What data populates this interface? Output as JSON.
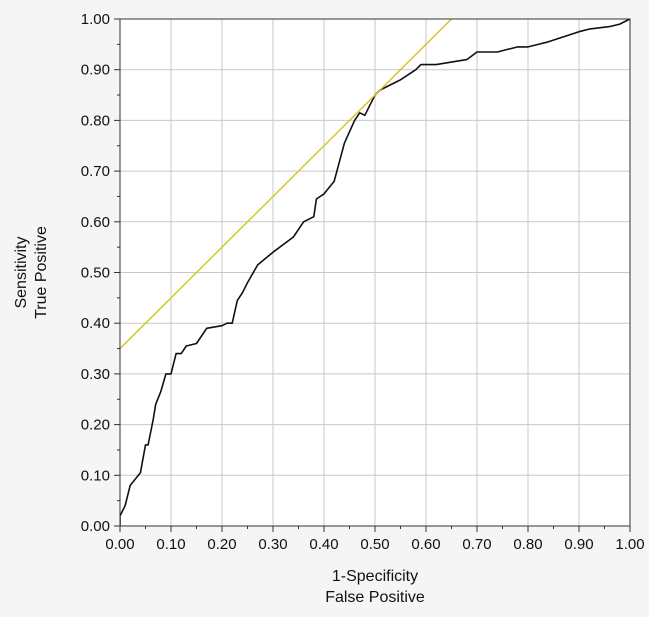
{
  "chart_data": {
    "type": "line",
    "title": "",
    "xlabel": [
      "1-Specificity",
      "False Positive"
    ],
    "ylabel": [
      "Sensitivity",
      "True Positive"
    ],
    "xlim": [
      0,
      1
    ],
    "ylim": [
      0,
      1
    ],
    "x_ticks": [
      "0.00",
      "0.10",
      "0.20",
      "0.30",
      "0.40",
      "0.50",
      "0.60",
      "0.70",
      "0.80",
      "0.90",
      "1.00"
    ],
    "y_ticks": [
      "0.00",
      "0.10",
      "0.20",
      "0.30",
      "0.40",
      "0.50",
      "0.60",
      "0.70",
      "0.80",
      "0.90",
      "1.00"
    ],
    "grid": true,
    "series": [
      {
        "color": "#111111",
        "points": [
          [
            0.0,
            0.0
          ],
          [
            0.0,
            0.02
          ],
          [
            0.01,
            0.04
          ],
          [
            0.02,
            0.08
          ],
          [
            0.04,
            0.105
          ],
          [
            0.05,
            0.16
          ],
          [
            0.055,
            0.16
          ],
          [
            0.065,
            0.21
          ],
          [
            0.07,
            0.24
          ],
          [
            0.08,
            0.265
          ],
          [
            0.09,
            0.3
          ],
          [
            0.1,
            0.3
          ],
          [
            0.11,
            0.34
          ],
          [
            0.12,
            0.34
          ],
          [
            0.13,
            0.355
          ],
          [
            0.15,
            0.36
          ],
          [
            0.17,
            0.39
          ],
          [
            0.2,
            0.395
          ],
          [
            0.21,
            0.4
          ],
          [
            0.22,
            0.4
          ],
          [
            0.23,
            0.445
          ],
          [
            0.24,
            0.46
          ],
          [
            0.25,
            0.48
          ],
          [
            0.27,
            0.515
          ],
          [
            0.3,
            0.54
          ],
          [
            0.34,
            0.57
          ],
          [
            0.36,
            0.6
          ],
          [
            0.38,
            0.61
          ],
          [
            0.385,
            0.645
          ],
          [
            0.4,
            0.655
          ],
          [
            0.42,
            0.68
          ],
          [
            0.44,
            0.755
          ],
          [
            0.46,
            0.8
          ],
          [
            0.47,
            0.815
          ],
          [
            0.48,
            0.81
          ],
          [
            0.49,
            0.83
          ],
          [
            0.5,
            0.85
          ],
          [
            0.51,
            0.86
          ],
          [
            0.54,
            0.875
          ],
          [
            0.55,
            0.88
          ],
          [
            0.58,
            0.9
          ],
          [
            0.59,
            0.91
          ],
          [
            0.62,
            0.91
          ],
          [
            0.65,
            0.915
          ],
          [
            0.68,
            0.92
          ],
          [
            0.7,
            0.935
          ],
          [
            0.74,
            0.935
          ],
          [
            0.76,
            0.94
          ],
          [
            0.78,
            0.945
          ],
          [
            0.8,
            0.945
          ],
          [
            0.82,
            0.95
          ],
          [
            0.84,
            0.955
          ],
          [
            0.87,
            0.965
          ],
          [
            0.9,
            0.975
          ],
          [
            0.92,
            0.98
          ],
          [
            0.96,
            0.985
          ],
          [
            0.98,
            0.99
          ],
          [
            0.99,
            0.995
          ],
          [
            1.0,
            1.0
          ]
        ]
      },
      {
        "color": "#d4c420",
        "points": [
          [
            0.0,
            0.35
          ],
          [
            0.65,
            1.0
          ]
        ]
      }
    ]
  }
}
